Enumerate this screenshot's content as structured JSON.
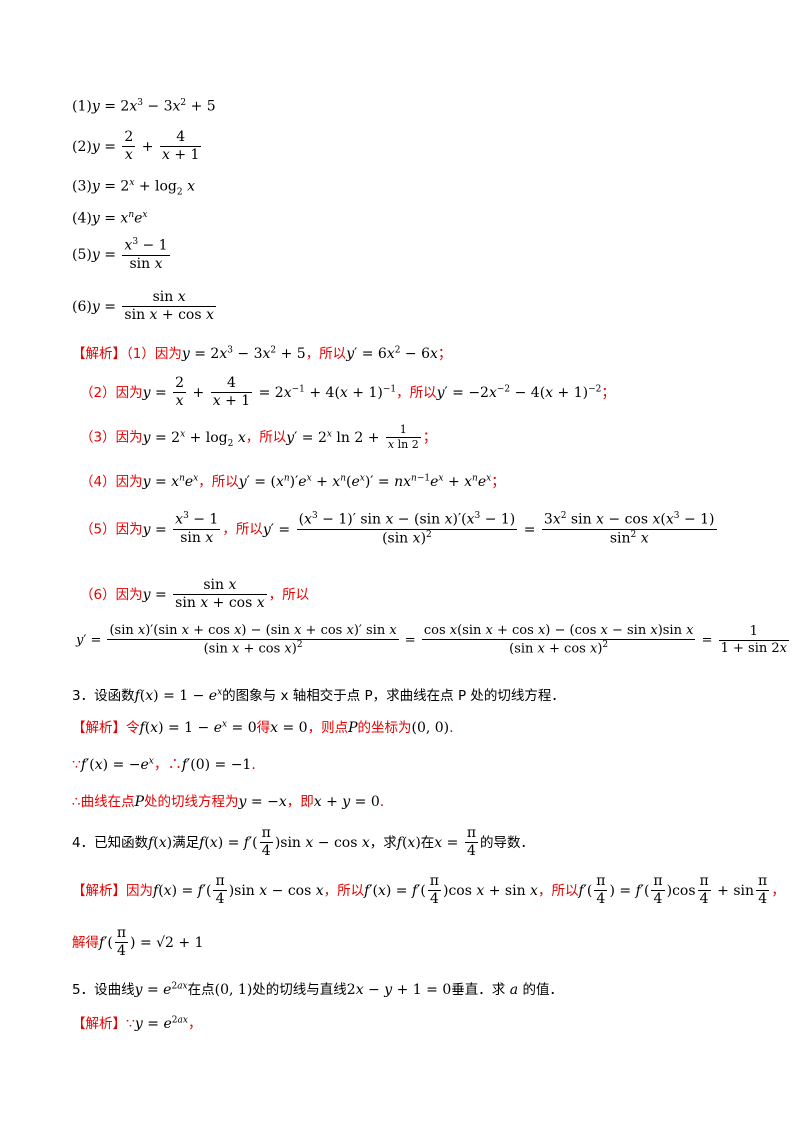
{
  "items": {
    "p1": "(1)",
    "p2": "(2)",
    "p3": "(3)",
    "p4": "(4)",
    "p5": "(5)",
    "p6": "(6)"
  },
  "analysis": {
    "tag": "【解析】",
    "s1_pre": "（1）因为",
    "s1_mid": "，所以",
    "s2_pre": "（2）因为",
    "s2_mid": "，所以",
    "s3_pre": "（3）因为",
    "s3_mid": "，所以",
    "s4_pre": "（4）因为",
    "s4_mid": "，所以",
    "s5_pre": "（5）因为",
    "s5_mid": "，所以",
    "s6_pre": "（6）因为",
    "s6_mid": "，所以"
  },
  "q3": {
    "num": "3．设函数",
    "text1": "的图象与 x 轴相交于点 P，求曲线在点 P 处的切线方程．",
    "sol_a": "令",
    "sol_b": "得",
    "sol_c": "，则点",
    "sol_d": "的坐标为",
    "sol_e": ".",
    "since": "∵",
    "therefore": "∴",
    "conclusion_a": "∴曲线在点",
    "conclusion_b": "处的切线方程为",
    "conclusion_c": "，即",
    "conclusion_d": "."
  },
  "q4": {
    "num": "4．已知函数",
    "text1": "满足",
    "text2": "，求",
    "text3": "在",
    "text4": "的导数．",
    "sol_a": "因为",
    "sol_b": "，所以",
    "sol_c": "，所以",
    "solve": "解得"
  },
  "q5": {
    "num": "5．设曲线",
    "text1": "在点",
    "text2": "处的切线与直线",
    "text3": "垂直．求",
    "text4": "的值．",
    "sol": "∵"
  }
}
